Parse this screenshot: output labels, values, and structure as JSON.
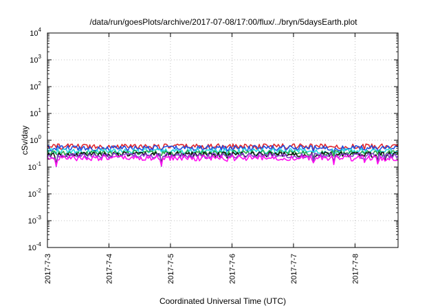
{
  "chart_data": {
    "type": "line",
    "title": "/data/run/goesPlots/archive/2017-07-08/17:00/flux/../bryn/5daysEarth.plot",
    "xlabel": "Coordinated Universal Time (UTC)",
    "ylabel": "cSv/day",
    "yscale": "log",
    "ylim": [
      0.0001,
      10000
    ],
    "xlim": [
      0,
      5.7
    ],
    "grid": true,
    "x_ticks": [
      {
        "value": 0,
        "label": "2017-7-3"
      },
      {
        "value": 1,
        "label": "2017-7-4"
      },
      {
        "value": 2,
        "label": "2017-7-5"
      },
      {
        "value": 3,
        "label": "2017-7-6"
      },
      {
        "value": 4,
        "label": "2017-7-7"
      },
      {
        "value": 5,
        "label": "2017-7-8"
      }
    ],
    "y_ticks": [
      {
        "value": 0.0001,
        "base": "10",
        "exp": "-4"
      },
      {
        "value": 0.001,
        "base": "10",
        "exp": "-3"
      },
      {
        "value": 0.01,
        "base": "10",
        "exp": "-2"
      },
      {
        "value": 0.1,
        "base": "10",
        "exp": "-1"
      },
      {
        "value": 1,
        "base": "10",
        "exp": "0"
      },
      {
        "value": 10,
        "base": "10",
        "exp": "1"
      },
      {
        "value": 100,
        "base": "10",
        "exp": "2"
      },
      {
        "value": 1000,
        "base": "10",
        "exp": "3"
      },
      {
        "value": 10000,
        "base": "10",
        "exp": "4"
      }
    ],
    "series": [
      {
        "color": "#e0282e",
        "level": 0.6
      },
      {
        "color": "#1f4fe0",
        "level": 0.52
      },
      {
        "color": "#22d8e0",
        "level": 0.4
      },
      {
        "color": "#2aa84a",
        "level": 0.34
      },
      {
        "color": "#111111",
        "level": 0.3
      },
      {
        "color": "#8a3fd0",
        "level": 0.27
      },
      {
        "color": "#ff10f0",
        "level": 0.22
      }
    ]
  }
}
